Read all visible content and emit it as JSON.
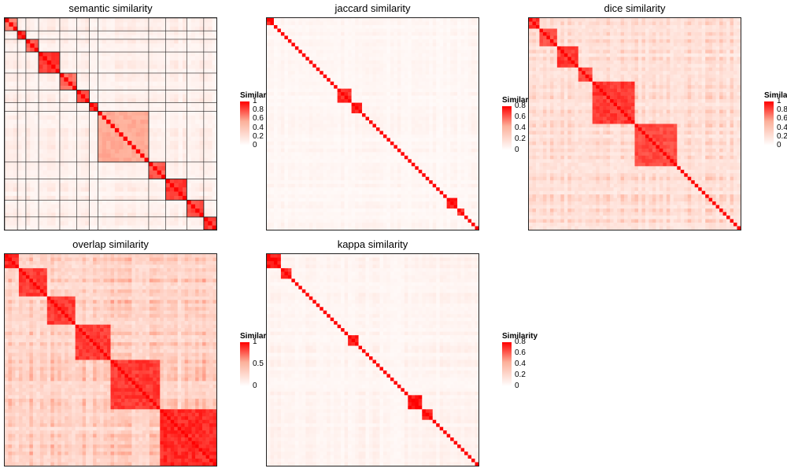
{
  "colors": {
    "high": "#ff0000",
    "low": "#ffffff",
    "border": "#222222"
  },
  "legend": {
    "title": "Similarity"
  },
  "chart_data": [
    {
      "type": "heatmap",
      "title": "semantic similarity",
      "n": 50,
      "range": [
        0,
        1
      ],
      "legend_ticks": [
        "1",
        "0.8",
        "0.6",
        "0.4",
        "0.2",
        "0"
      ],
      "legend_title": "Similarity",
      "clusters": [
        {
          "size": 3,
          "value": 0.7
        },
        {
          "size": 2,
          "value": 0.9
        },
        {
          "size": 3,
          "value": 0.8
        },
        {
          "size": 5,
          "value": 0.9
        },
        {
          "size": 4,
          "value": 0.75
        },
        {
          "size": 3,
          "value": 0.85
        },
        {
          "size": 2,
          "value": 0.9
        },
        {
          "size": 12,
          "value": 0.55
        },
        {
          "size": 4,
          "value": 0.8
        },
        {
          "size": 5,
          "value": 0.9
        },
        {
          "size": 4,
          "value": 0.85
        },
        {
          "size": 3,
          "value": 0.9
        }
      ],
      "background": 0.12,
      "cluster_borders": true
    },
    {
      "type": "heatmap",
      "title": "jaccard similarity",
      "n": 60,
      "range": [
        0,
        0.8
      ],
      "legend_ticks": [
        "0.8",
        "0.6",
        "0.4",
        "0.2",
        "0"
      ],
      "legend_title": "Similarity",
      "clusters": [
        {
          "size": 2,
          "value": 0.8
        },
        {
          "size": 18,
          "value": 0.0
        },
        {
          "size": 4,
          "value": 0.75
        },
        {
          "size": 3,
          "value": 0.8
        },
        {
          "size": 24,
          "value": 0.0
        },
        {
          "size": 3,
          "value": 0.8
        },
        {
          "size": 2,
          "value": 0.75
        },
        {
          "size": 4,
          "value": 0.0
        }
      ],
      "background": 0.06,
      "cluster_borders": false
    },
    {
      "type": "heatmap",
      "title": "dice similarity",
      "n": 60,
      "range": [
        0,
        1
      ],
      "legend_ticks": [
        "1",
        "0.8",
        "0.6",
        "0.4",
        "0.2",
        "0"
      ],
      "legend_title": "Similarity",
      "clusters": [
        {
          "size": 3,
          "value": 0.9
        },
        {
          "size": 5,
          "value": 0.85
        },
        {
          "size": 6,
          "value": 0.9
        },
        {
          "size": 4,
          "value": 0.85
        },
        {
          "size": 12,
          "value": 0.9
        },
        {
          "size": 12,
          "value": 0.85
        },
        {
          "size": 18,
          "value": 0.0
        }
      ],
      "background": 0.28,
      "cluster_borders": false
    },
    {
      "type": "heatmap",
      "title": "overlap similarity",
      "n": 60,
      "range": [
        0,
        1
      ],
      "legend_ticks": [
        "1",
        "0.5",
        "0"
      ],
      "legend_title": "Similarity",
      "clusters": [
        {
          "size": 4,
          "value": 0.95
        },
        {
          "size": 8,
          "value": 0.9
        },
        {
          "size": 8,
          "value": 0.9
        },
        {
          "size": 10,
          "value": 0.9
        },
        {
          "size": 14,
          "value": 0.9
        },
        {
          "size": 16,
          "value": 0.95
        }
      ],
      "background": 0.38,
      "cluster_borders": false
    },
    {
      "type": "heatmap",
      "title": "kappa similarity",
      "n": 60,
      "range": [
        0,
        0.8
      ],
      "legend_ticks": [
        "0.8",
        "0.6",
        "0.4",
        "0.2",
        "0"
      ],
      "legend_title": "Similarity",
      "clusters": [
        {
          "size": 4,
          "value": 0.8
        },
        {
          "size": 3,
          "value": 0.75
        },
        {
          "size": 16,
          "value": 0.0
        },
        {
          "size": 3,
          "value": 0.8
        },
        {
          "size": 14,
          "value": 0.0
        },
        {
          "size": 4,
          "value": 0.8
        },
        {
          "size": 3,
          "value": 0.8
        },
        {
          "size": 13,
          "value": 0.0
        }
      ],
      "background": 0.07,
      "cluster_borders": false
    }
  ]
}
